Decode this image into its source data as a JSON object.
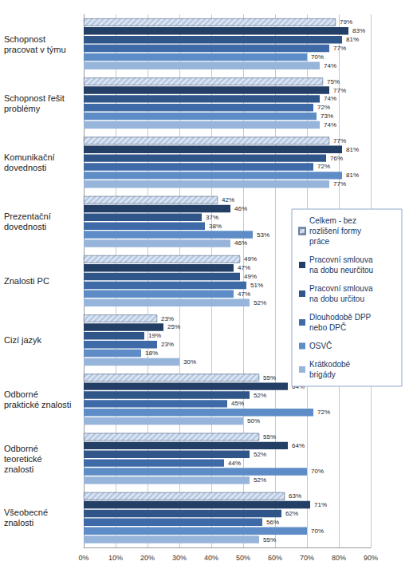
{
  "chart_data": {
    "type": "bar",
    "orientation": "horizontal",
    "categories": [
      "Schopnost pracovat v týmu",
      "Schopnost řešit problémy",
      "Komunikační dovednosti",
      "Prezentační dovednosti",
      "Znalosti PC",
      "Cizí jazyk",
      "Odborné praktické znalosti",
      "Odborné teoretické znalosti",
      "Všeobecné znalosti"
    ],
    "series": [
      {
        "name": "Celkem - bez rozlišení formy práce",
        "color": "#b9cbe3",
        "values": [
          79,
          75,
          77,
          42,
          49,
          23,
          55,
          55,
          63
        ],
        "value_labels": [
          "79%",
          "75%",
          "77%",
          "42%",
          "49%",
          "23%",
          "55%",
          "55%",
          "63%"
        ]
      },
      {
        "name": "Pracovní smlouva na dobu neurčitou",
        "color": "#243f66",
        "values": [
          83,
          77,
          81,
          46,
          47,
          25,
          64,
          64,
          71
        ],
        "value_labels": [
          "83%",
          "77%",
          "81%",
          "46%",
          "47%",
          "25%",
          "64%",
          "64%",
          "71%"
        ]
      },
      {
        "name": "Pracovní smlouva na dobu určitou",
        "color": "#2f5589",
        "values": [
          81,
          74,
          76,
          37,
          49,
          19,
          52,
          52,
          62
        ],
        "value_labels": [
          "81%",
          "74%",
          "76%",
          "37%",
          "49%",
          "19%",
          "52%",
          "52%",
          "62%"
        ]
      },
      {
        "name": "Dlouhodobě DPP nebo DPČ",
        "color": "#3f6aa8",
        "values": [
          77,
          72,
          72,
          38,
          51,
          23,
          45,
          44,
          56
        ],
        "value_labels": [
          "77%",
          "72%",
          "72%",
          "38%",
          "51%",
          "23%",
          "45%",
          "44%",
          "56%"
        ]
      },
      {
        "name": "OSVČ",
        "color": "#5e8cc6",
        "values": [
          70,
          73,
          81,
          53,
          47,
          18,
          72,
          70,
          70
        ],
        "value_labels": [
          "70%",
          "73%",
          "81%",
          "53%",
          "47%",
          "18%",
          "72%",
          "70%",
          "70%"
        ]
      },
      {
        "name": "Krátkodobé brigády",
        "color": "#97b4da",
        "values": [
          74,
          74,
          77,
          46,
          52,
          30,
          50,
          52,
          55
        ],
        "value_labels": [
          "74%",
          "74%",
          "77%",
          "46%",
          "52%",
          "30%",
          "50%",
          "52%",
          "55%"
        ]
      }
    ],
    "xlim": [
      0,
      90
    ],
    "xticks": [
      {
        "value": 0,
        "label": "0%"
      },
      {
        "value": 10,
        "label": "10%"
      },
      {
        "value": 20,
        "label": "20%"
      },
      {
        "value": 30,
        "label": "30%"
      },
      {
        "value": 40,
        "label": "40%"
      },
      {
        "value": 50,
        "label": "50%"
      },
      {
        "value": 60,
        "label": "60%"
      },
      {
        "value": 70,
        "label": "70%"
      },
      {
        "value": 80,
        "label": "80%"
      },
      {
        "value": 90,
        "label": "90%"
      }
    ],
    "grid": true,
    "legend": "right",
    "data_labels": true
  }
}
